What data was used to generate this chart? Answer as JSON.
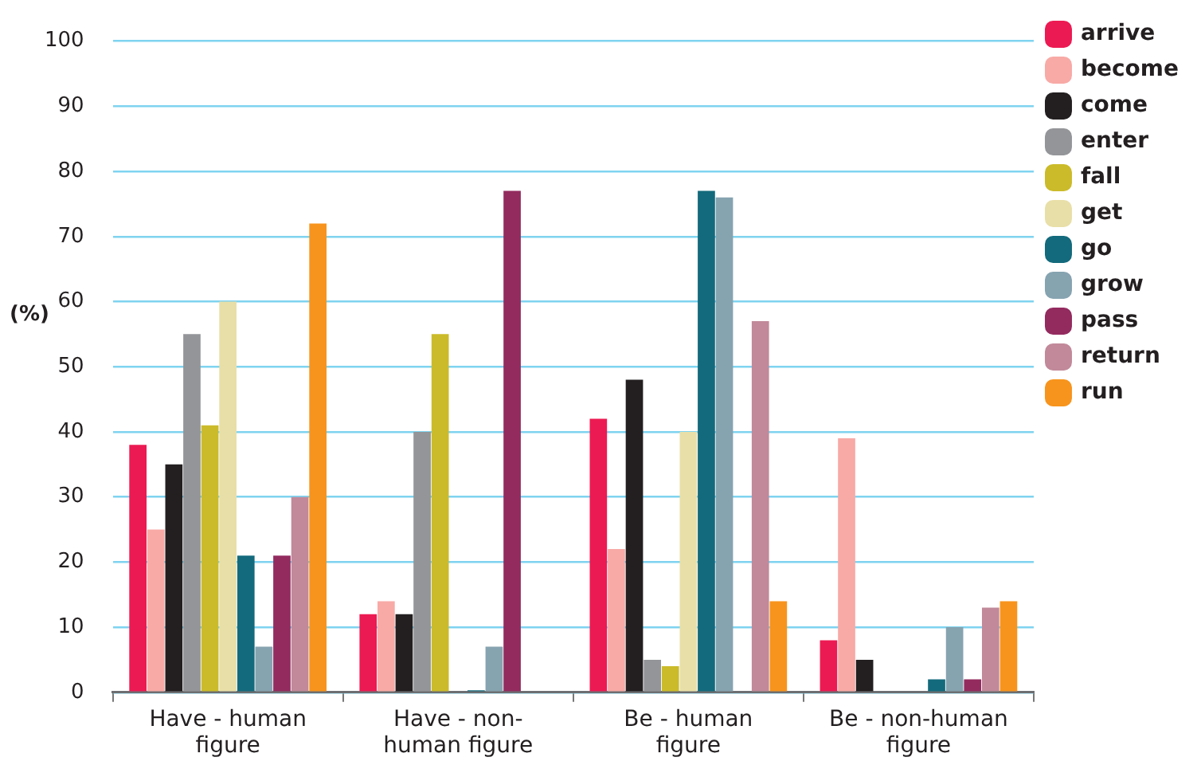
{
  "chart_data": {
    "type": "bar",
    "ylabel": "(%)",
    "categories": [
      "Have - human figure",
      "Have - non-human figure",
      "Be - human figure",
      "Be - non-human figure"
    ],
    "series": [
      {
        "name": "arrive",
        "color": "#ec1a52",
        "values": [
          38,
          12,
          42,
          8
        ]
      },
      {
        "name": "become",
        "color": "#f8aaa6",
        "values": [
          25,
          14,
          22,
          39
        ]
      },
      {
        "name": "come",
        "color": "#231f20",
        "values": [
          35,
          12,
          48,
          5
        ]
      },
      {
        "name": "enter",
        "color": "#939598",
        "values": [
          55,
          40,
          5,
          0
        ]
      },
      {
        "name": "fall",
        "color": "#cbbb2a",
        "values": [
          41,
          55,
          4,
          0
        ]
      },
      {
        "name": "get",
        "color": "#e8dfa8",
        "values": [
          60,
          0,
          40,
          0
        ]
      },
      {
        "name": "go",
        "color": "#136a7c",
        "values": [
          21,
          0.3,
          77,
          2
        ]
      },
      {
        "name": "grow",
        "color": "#86a3b0",
        "values": [
          7,
          7,
          76,
          10
        ]
      },
      {
        "name": "pass",
        "color": "#932b5f",
        "values": [
          21,
          77,
          0,
          2
        ]
      },
      {
        "name": "return",
        "color": "#c1899a",
        "values": [
          30,
          0,
          57,
          13
        ]
      },
      {
        "name": "run",
        "color": "#f7941d",
        "values": [
          72,
          0,
          14,
          14
        ]
      }
    ],
    "ylim": [
      0,
      100
    ],
    "yticks": [
      0,
      10,
      20,
      30,
      40,
      50,
      60,
      70,
      80,
      90,
      100
    ],
    "grid": "y",
    "legend": "right"
  }
}
